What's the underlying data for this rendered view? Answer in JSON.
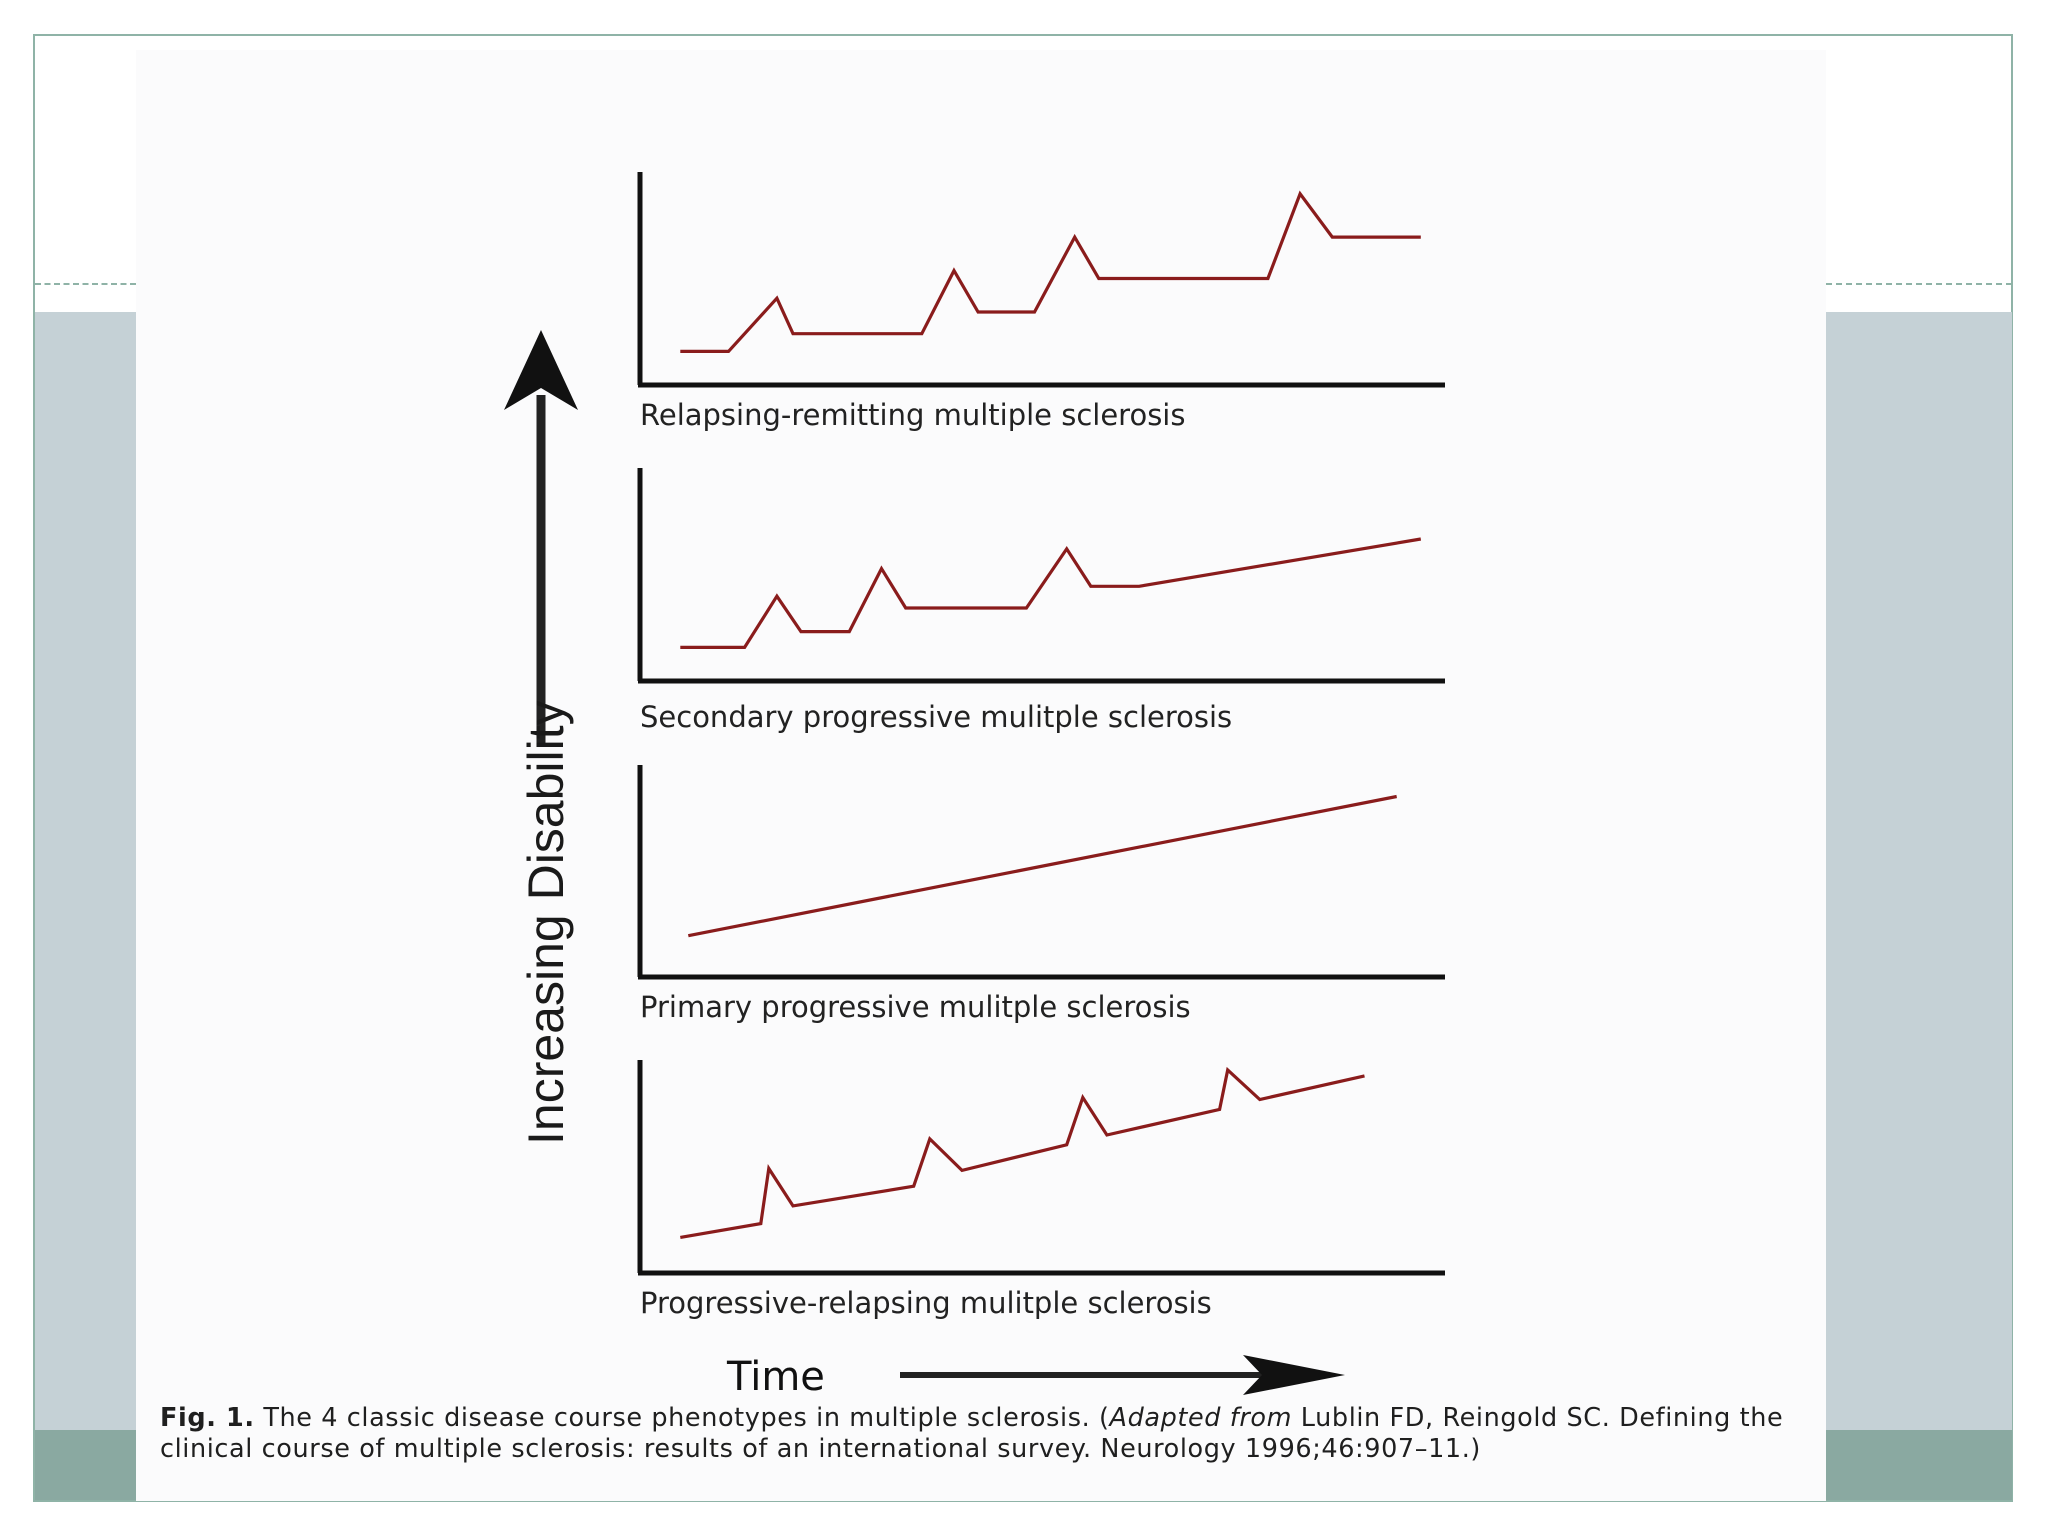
{
  "figure": {
    "y_axis_label": "Increasing Disability",
    "x_axis_label": "Time",
    "colors": {
      "curve": "#8a1c1c",
      "axis": "#111111"
    }
  },
  "chart_data": [
    {
      "type": "line",
      "title": "Relapsing-remitting multiple sclerosis",
      "xlabel": "Time",
      "ylabel": "Increasing Disability",
      "xlim": [
        0,
        100
      ],
      "ylim": [
        0,
        100
      ],
      "series": [
        {
          "name": "disability",
          "x": [
            5,
            11,
            17,
            19,
            35,
            39,
            42,
            49,
            54,
            57,
            78,
            82,
            86,
            97
          ],
          "y": [
            13,
            13,
            40,
            22,
            22,
            54,
            33,
            33,
            71,
            50,
            50,
            93,
            71,
            71
          ]
        }
      ]
    },
    {
      "type": "line",
      "title": "Secondary progressive mulitple sclerosis",
      "xlabel": "Time",
      "ylabel": "Increasing Disability",
      "xlim": [
        0,
        100
      ],
      "ylim": [
        0,
        100
      ],
      "series": [
        {
          "name": "disability",
          "x": [
            5,
            13,
            17,
            20,
            26,
            30,
            33,
            48,
            53,
            56,
            62,
            97
          ],
          "y": [
            13,
            13,
            39,
            21,
            21,
            53,
            33,
            33,
            63,
            44,
            44,
            68
          ]
        }
      ]
    },
    {
      "type": "line",
      "title": "Primary progressive mulitple sclerosis",
      "xlabel": "Time",
      "ylabel": "Increasing Disability",
      "xlim": [
        0,
        100
      ],
      "ylim": [
        0,
        100
      ],
      "series": [
        {
          "name": "disability",
          "x": [
            6,
            94
          ],
          "y": [
            17,
            88
          ]
        }
      ]
    },
    {
      "type": "line",
      "title": "Progressive-relapsing mulitple sclerosis",
      "xlabel": "Time",
      "ylabel": "Increasing Disability",
      "xlim": [
        0,
        100
      ],
      "ylim": [
        0,
        100
      ],
      "series": [
        {
          "name": "disability",
          "x": [
            5,
            15,
            16,
            19,
            34,
            36,
            40,
            53,
            55,
            58,
            72,
            73,
            77,
            90
          ],
          "y": [
            14,
            21,
            49,
            30,
            40,
            64,
            48,
            61,
            85,
            66,
            79,
            99,
            84,
            96
          ]
        }
      ]
    }
  ],
  "caption": {
    "fig_label": "Fig. 1.",
    "text_before": " The 4 classic disease course phenotypes in multiple sclerosis. (",
    "adapted_from": "Adapted from",
    "text_after": " Lublin FD, Reingold SC. Defining the clinical course of multiple sclerosis: results of an international survey. Neurology 1996;46:907–11.)"
  }
}
